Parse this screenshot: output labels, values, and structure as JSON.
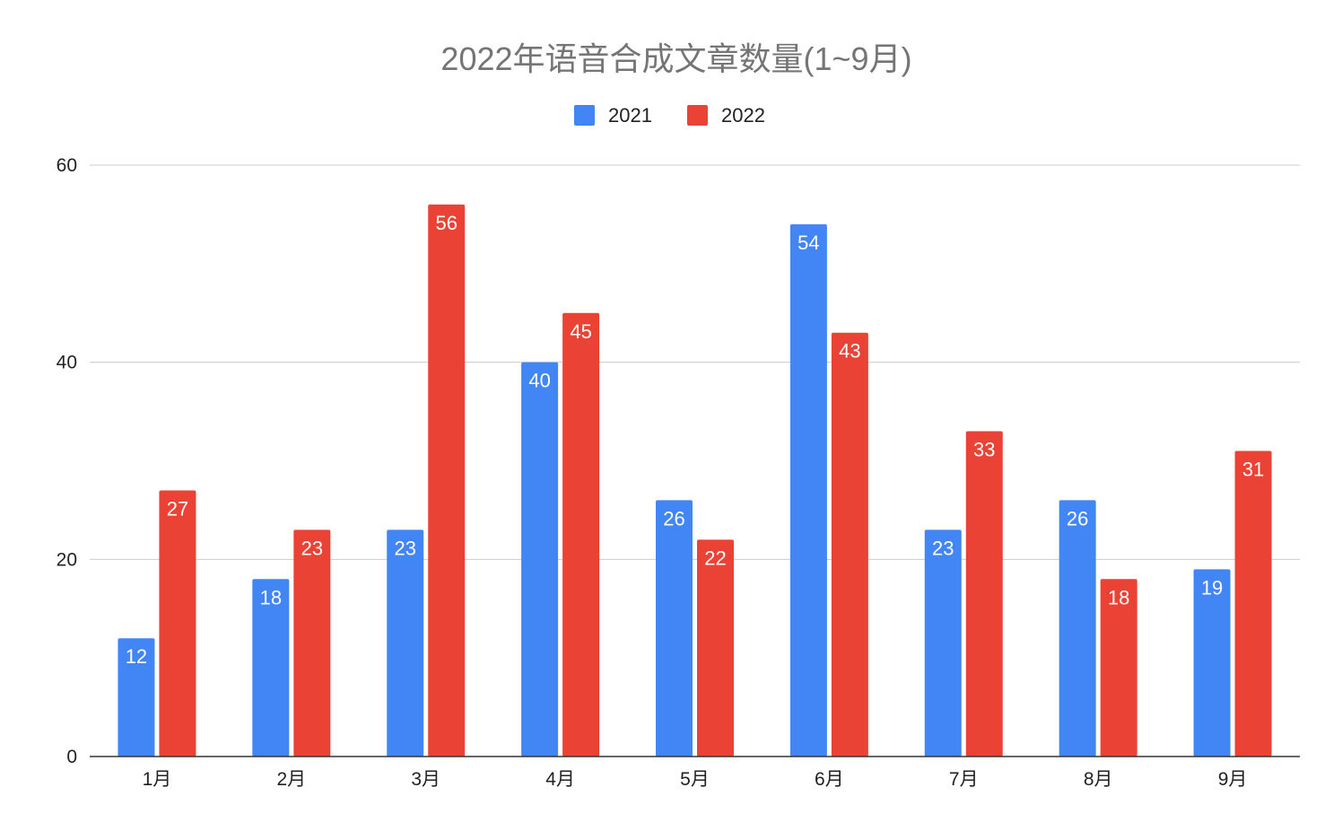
{
  "chart_data": {
    "type": "bar",
    "title": "2022年语音合成文章数量(1~9月)",
    "xlabel": "",
    "ylabel": "",
    "categories": [
      "1月",
      "2月",
      "3月",
      "4月",
      "5月",
      "6月",
      "7月",
      "8月",
      "9月"
    ],
    "series": [
      {
        "name": "2021",
        "color": "#4285f4",
        "values": [
          12,
          18,
          23,
          40,
          26,
          54,
          23,
          26,
          19
        ]
      },
      {
        "name": "2022",
        "color": "#ea4335",
        "values": [
          27,
          23,
          56,
          45,
          22,
          43,
          33,
          18,
          31
        ]
      }
    ],
    "ylim": [
      0,
      60
    ],
    "yticks": [
      0,
      20,
      40,
      60
    ],
    "grid": true,
    "legend_position": "top-center",
    "data_labels": true
  }
}
